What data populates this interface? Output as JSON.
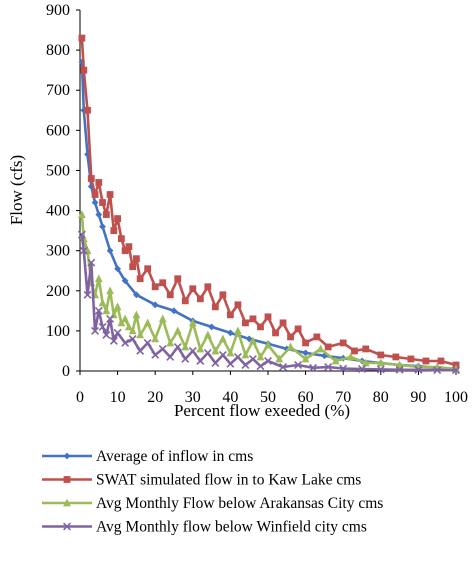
{
  "chart_data": {
    "type": "line",
    "title": "",
    "xlabel": "Percent flow exeeded (%)",
    "ylabel": "Flow (cfs)",
    "xlim": [
      0,
      100
    ],
    "ylim": [
      0,
      900
    ],
    "x_ticks": [
      0,
      10,
      20,
      30,
      40,
      50,
      60,
      70,
      80,
      90,
      100
    ],
    "y_ticks": [
      0,
      100,
      200,
      300,
      400,
      500,
      600,
      700,
      800,
      900
    ],
    "grid": false,
    "legend_position": "bottom",
    "series": [
      {
        "name": "Average of inflow in cms",
        "color": "#4472c4",
        "marker": "diamond",
        "x": [
          0.5,
          1,
          2,
          3,
          4,
          5,
          6,
          8,
          10,
          12,
          15,
          20,
          25,
          30,
          35,
          40,
          45,
          50,
          55,
          60,
          65,
          70,
          75,
          80,
          85,
          90,
          95,
          100
        ],
        "y": [
          770,
          650,
          540,
          460,
          420,
          390,
          360,
          300,
          255,
          225,
          190,
          165,
          150,
          125,
          110,
          95,
          80,
          68,
          55,
          45,
          38,
          32,
          25,
          20,
          15,
          12,
          8,
          5
        ]
      },
      {
        "name": "SWAT simulated flow in to Kaw Lake cms",
        "color": "#c0504d",
        "marker": "square",
        "x": [
          0.5,
          1,
          2,
          3,
          4,
          5,
          6,
          7,
          8,
          9,
          10,
          11,
          12,
          13,
          14,
          15,
          16,
          18,
          20,
          22,
          24,
          26,
          28,
          30,
          32,
          34,
          36,
          38,
          40,
          42,
          44,
          46,
          48,
          50,
          52,
          54,
          56,
          58,
          60,
          63,
          66,
          70,
          73,
          76,
          80,
          84,
          88,
          92,
          96,
          100
        ],
        "y": [
          830,
          750,
          650,
          480,
          440,
          470,
          420,
          390,
          440,
          350,
          380,
          330,
          300,
          310,
          260,
          280,
          230,
          255,
          210,
          220,
          190,
          230,
          175,
          205,
          180,
          210,
          160,
          190,
          140,
          165,
          120,
          130,
          110,
          135,
          95,
          120,
          85,
          105,
          70,
          85,
          60,
          70,
          50,
          55,
          40,
          35,
          30,
          25,
          25,
          15
        ]
      },
      {
        "name": "Avg Monthly Flow below Arakansas City cms",
        "color": "#9bbb59",
        "marker": "triangle",
        "x": [
          0.5,
          1,
          2,
          3,
          4,
          5,
          6,
          7,
          8,
          9,
          10,
          11,
          12,
          13,
          14,
          15,
          16,
          18,
          20,
          22,
          24,
          26,
          28,
          30,
          32,
          34,
          36,
          38,
          40,
          42,
          44,
          46,
          48,
          50,
          53,
          56,
          60,
          64,
          68,
          72,
          76,
          80,
          85,
          90,
          95,
          100
        ],
        "y": [
          390,
          330,
          300,
          220,
          190,
          230,
          170,
          150,
          200,
          140,
          160,
          120,
          130,
          110,
          100,
          140,
          90,
          120,
          80,
          130,
          70,
          100,
          60,
          120,
          55,
          90,
          50,
          80,
          45,
          100,
          40,
          75,
          35,
          65,
          30,
          60,
          30,
          55,
          25,
          35,
          20,
          20,
          15,
          10,
          10,
          5
        ]
      },
      {
        "name": "Avg Monthly flow below Winfield city cms",
        "color": "#8064a2",
        "marker": "x",
        "x": [
          0.5,
          1,
          2,
          3,
          4,
          5,
          6,
          7,
          8,
          9,
          10,
          12,
          14,
          16,
          18,
          20,
          22,
          24,
          26,
          28,
          30,
          32,
          34,
          36,
          38,
          40,
          42,
          44,
          46,
          48,
          50,
          54,
          58,
          62,
          66,
          70,
          75,
          80,
          85,
          90,
          95,
          100
        ],
        "y": [
          340,
          300,
          190,
          270,
          100,
          150,
          110,
          90,
          130,
          75,
          95,
          70,
          80,
          50,
          70,
          40,
          55,
          35,
          60,
          30,
          50,
          25,
          45,
          20,
          40,
          18,
          35,
          15,
          30,
          12,
          25,
          10,
          15,
          8,
          10,
          6,
          5,
          4,
          3,
          3,
          2,
          2
        ]
      }
    ]
  }
}
